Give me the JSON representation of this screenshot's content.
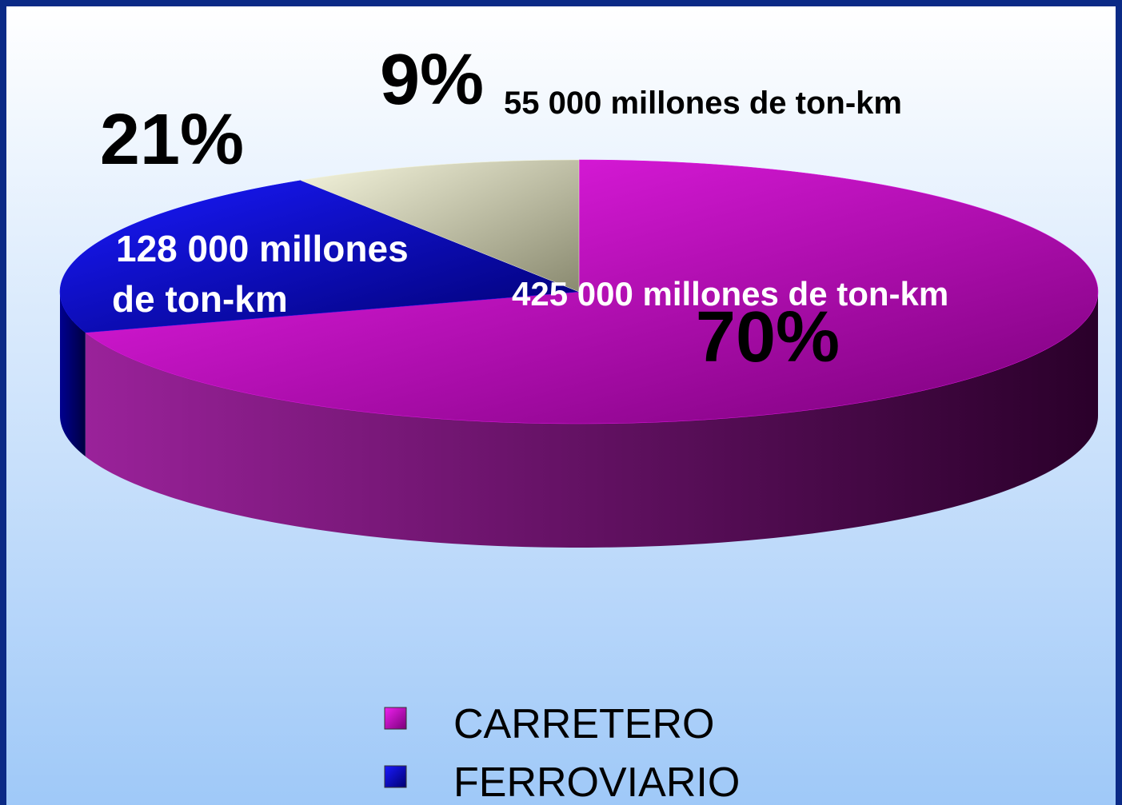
{
  "chart_data": {
    "type": "pie",
    "categories": [
      "CARRETERO",
      "FERROVIARIO",
      null
    ],
    "values": [
      70,
      21,
      9
    ],
    "value_labels": [
      "70%",
      "21%",
      "9%"
    ],
    "colors": [
      "#e010e0",
      "#1010e8",
      "#f2f2d2"
    ],
    "annotations": [
      [
        "425 000 millones de ton-km"
      ],
      [
        "128 000 millones",
        "de ton-km"
      ],
      [
        "55 000 millones de ton-km"
      ]
    ],
    "legend": "bottom"
  }
}
